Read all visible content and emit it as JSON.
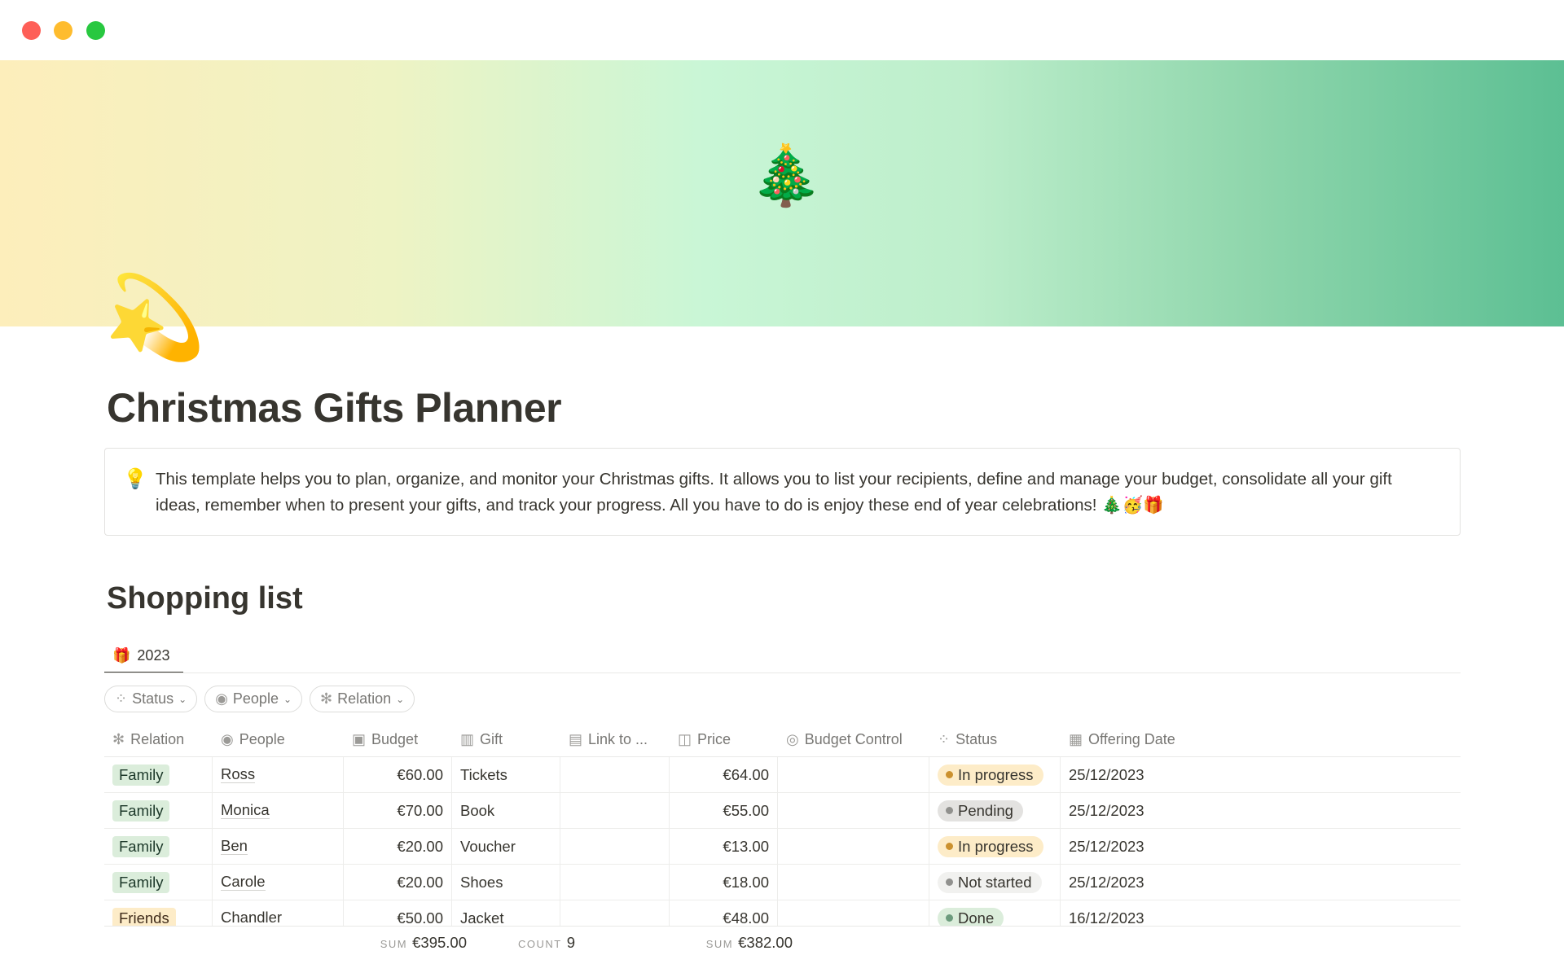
{
  "window": {
    "controls": [
      {
        "name": "close",
        "color": "#fe5f57"
      },
      {
        "name": "minimize",
        "color": "#febc2e"
      },
      {
        "name": "maximize",
        "color": "#28c840"
      }
    ]
  },
  "cover": {
    "emoji": "🎄"
  },
  "page": {
    "icon": "💫",
    "title": "Christmas Gifts Planner"
  },
  "callout": {
    "icon": "💡",
    "text": "This template helps you to plan, organize, and monitor your Christmas gifts. It allows you to list your recipients, define and manage your budget, consolidate all your gift ideas, remember when to present your gifts, and track your progress. All you have to do is enjoy these end of year celebrations! 🎄🥳🎁"
  },
  "section": {
    "title": "Shopping list"
  },
  "tabs": [
    {
      "label": "2023",
      "icon": "gift-icon"
    }
  ],
  "filters": [
    {
      "label": "Status",
      "icon": "status-icon"
    },
    {
      "label": "People",
      "icon": "person-icon"
    },
    {
      "label": "Relation",
      "icon": "atom-icon"
    }
  ],
  "columns": [
    {
      "label": "Relation",
      "icon": "atom-icon"
    },
    {
      "label": "People",
      "icon": "person-icon"
    },
    {
      "label": "Budget",
      "icon": "money-icon"
    },
    {
      "label": "Gift",
      "icon": "gift-icon"
    },
    {
      "label": "Link to ...",
      "icon": "store-icon"
    },
    {
      "label": "Price",
      "icon": "price-icon"
    },
    {
      "label": "Budget Control",
      "icon": "eye-icon"
    },
    {
      "label": "Status",
      "icon": "status-icon"
    },
    {
      "label": "Offering Date",
      "icon": "calendar-icon"
    }
  ],
  "rows": [
    {
      "relation": "Family",
      "people": "Ross",
      "budget": "€60.00",
      "gift": "Tickets",
      "link": "",
      "price": "€64.00",
      "control": "",
      "status": "In progress",
      "date": "25/12/2023"
    },
    {
      "relation": "Family",
      "people": "Monica",
      "budget": "€70.00",
      "gift": "Book",
      "link": "",
      "price": "€55.00",
      "control": "",
      "status": "Pending",
      "date": "25/12/2023"
    },
    {
      "relation": "Family",
      "people": "Ben",
      "budget": "€20.00",
      "gift": "Voucher",
      "link": "",
      "price": "€13.00",
      "control": "",
      "status": "In progress",
      "date": "25/12/2023"
    },
    {
      "relation": "Family",
      "people": "Carole",
      "budget": "€20.00",
      "gift": "Shoes",
      "link": "",
      "price": "€18.00",
      "control": "",
      "status": "Not started",
      "date": "25/12/2023"
    },
    {
      "relation": "Friends",
      "people": "Chandler",
      "budget": "€50.00",
      "gift": "Jacket",
      "link": "",
      "price": "€48.00",
      "control": "",
      "status": "Done",
      "date": "16/12/2023"
    }
  ],
  "footer": {
    "budget_label": "SUM",
    "budget_value": "€395.00",
    "gift_label": "COUNT",
    "gift_value": "9",
    "price_label": "SUM",
    "price_value": "€382.00"
  },
  "colors": {
    "Family": {
      "bg": "#dbeddb",
      "fg": "#1c3829"
    },
    "Friends": {
      "bg": "#fdecc8",
      "fg": "#402c1b"
    },
    "In progress": {
      "bg": "#fdecc8",
      "dot": "#cb912f"
    },
    "Pending": {
      "bg": "#e3e2e0",
      "dot": "#91918e"
    },
    "Not started": {
      "bg": "#f1f1ef",
      "dot": "#91918e"
    },
    "Done": {
      "bg": "#dbeddb",
      "dot": "#6c9b7d"
    }
  }
}
